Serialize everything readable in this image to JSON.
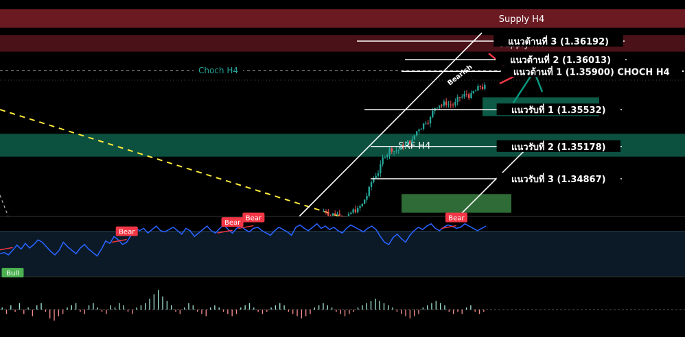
{
  "chart_data": {
    "type": "candlestick",
    "zones": [
      {
        "name": "Supply H4",
        "color": "#6b1a22",
        "y_top": 1.365,
        "y_bottom": 1.3632
      },
      {
        "name": "",
        "color": "#4a1218",
        "y_top": 1.3625,
        "y_bottom": 1.3609
      },
      {
        "name": "SRF H4",
        "color": "#0c5040",
        "y_top": 1.353,
        "y_bottom": 1.3508
      },
      {
        "name": "",
        "color": "#0d5a46",
        "y_top": 1.3565,
        "y_bottom": 1.3547
      },
      {
        "name": "",
        "color": "#2e6b36",
        "y_top": 1.3472,
        "y_bottom": 1.3454
      }
    ],
    "zone_labels": [
      {
        "text": "Supply H4",
        "price": 1.3639
      },
      {
        "text": "Supply H4",
        "price": 1.3617
      }
    ],
    "levels": [
      {
        "label": "แนวต้านที่ 3 (1.36192)",
        "price": 1.36192
      },
      {
        "label": "แนวต้านที่ 2 (1.36013)",
        "price": 1.36013
      },
      {
        "label": "แนวต้านที่ 1 (1.35900) CHOCH H4",
        "price": 1.359
      },
      {
        "label": "แนวรับที่ 1 (1.35532)",
        "price": 1.35532
      },
      {
        "label": "แนวรับที่ 2 (1.35178)",
        "price": 1.35178
      },
      {
        "label": "แนวรับที่ 3 (1.34867)",
        "price": 1.34867
      }
    ],
    "choch_label": "Choch H4",
    "choch_price": 1.3591,
    "bearish_label": "Bearish",
    "oscillator": {
      "values": [
        40,
        42,
        38,
        46,
        55,
        48,
        58,
        50,
        56,
        64,
        60,
        52,
        44,
        38,
        46,
        60,
        52,
        46,
        40,
        50,
        56,
        48,
        42,
        36,
        48,
        62,
        58,
        70,
        64,
        56,
        60,
        72,
        86,
        80,
        84,
        76,
        82,
        88,
        80,
        78,
        82,
        86,
        80,
        74,
        84,
        80,
        70,
        76,
        82,
        88,
        80,
        76,
        84,
        90,
        82,
        76,
        84,
        88,
        82,
        78,
        84,
        86,
        80,
        76,
        72,
        80,
        86,
        82,
        78,
        72,
        86,
        90,
        84,
        80,
        86,
        92,
        84,
        88,
        82,
        86,
        80,
        76,
        84,
        90,
        86,
        82,
        78,
        84,
        88,
        82,
        70,
        60,
        56,
        68,
        74,
        66,
        60,
        72,
        80,
        86,
        82,
        88,
        92,
        84,
        80,
        86,
        90,
        88,
        84,
        86,
        92,
        88,
        84,
        80,
        84,
        88
      ],
      "range": [
        0,
        100
      ],
      "signals": [
        {
          "text": "Bear",
          "type": "bear",
          "index": 30
        },
        {
          "text": "Bear",
          "type": "bear",
          "index": 55
        },
        {
          "text": "Bear",
          "type": "bear",
          "index": 60
        },
        {
          "text": "Bear",
          "type": "bear",
          "index": 108
        },
        {
          "text": "Bull",
          "type": "bull",
          "index": 3
        }
      ]
    },
    "histogram": [
      1,
      -2,
      2,
      -1,
      3,
      -2,
      1,
      -3,
      2,
      3,
      -1,
      -4,
      -5,
      -3,
      -2,
      1,
      2,
      3,
      -1,
      -2,
      2,
      3,
      1,
      -1,
      -2,
      2,
      1,
      3,
      2,
      -1,
      -2,
      1,
      2,
      3,
      5,
      7,
      9,
      6,
      4,
      2,
      -1,
      -2,
      1,
      3,
      2,
      -1,
      -2,
      -3,
      1,
      2,
      1,
      -1,
      -2,
      -3,
      -2,
      1,
      2,
      3,
      1,
      -1,
      -2,
      -1,
      1,
      2,
      3,
      2,
      -1,
      -2,
      -3,
      -4,
      -3,
      -2,
      1,
      2,
      3,
      2,
      1,
      -1,
      -2,
      -3,
      -2,
      -1,
      1,
      2,
      3,
      4,
      5,
      4,
      3,
      2,
      1,
      -1,
      -2,
      -3,
      -4,
      -3,
      -2,
      1,
      2,
      3,
      4,
      3,
      2,
      -1,
      -2,
      -1,
      -2,
      1,
      2,
      -1,
      -2,
      -1
    ],
    "colors": {
      "bull_candle": "#26a69a",
      "bear_candle": "#ef5350",
      "oscillator_line": "#2962ff",
      "trend_dash": "#ffeb3b",
      "channel": "#ffffff",
      "bear_badge": "#f23645",
      "bull_badge": "#4caf50",
      "choch_text": "#26a69a",
      "arrow_down": "#f23645",
      "arrow_up": "#089981"
    }
  }
}
